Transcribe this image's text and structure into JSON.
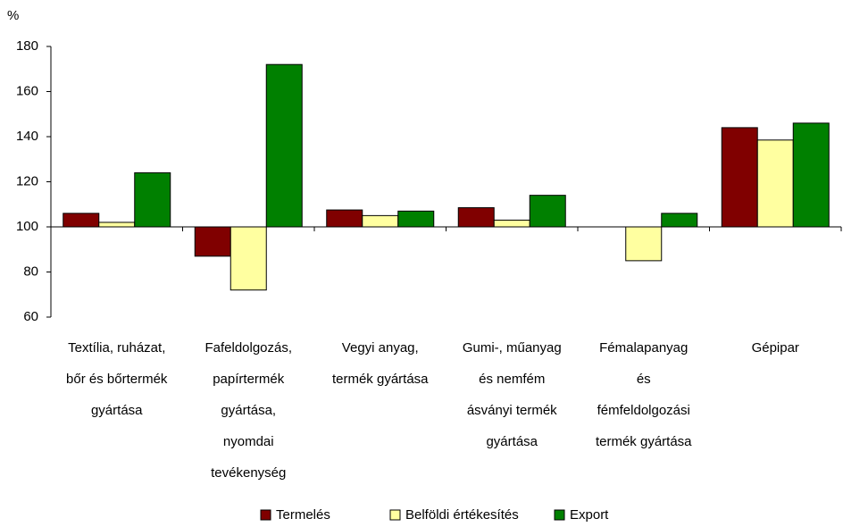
{
  "chart_data": {
    "type": "bar",
    "ylabel": "%",
    "categories": [
      [
        "Textília, ruházat,",
        "bőr és bőrtermék",
        "gyártása"
      ],
      [
        "Fafeldolgozás,",
        "papírtermék",
        "gyártása,",
        "nyomdai",
        "tevékenység"
      ],
      [
        "Vegyi anyag,",
        "termék gyártása"
      ],
      [
        "Gumi-, műanyag",
        "és nemfém",
        "ásványi termék",
        "gyártása"
      ],
      [
        "Fémalapanyag",
        "és",
        "fémfeldolgozási",
        "termék gyártása"
      ],
      [
        "Gépipar"
      ]
    ],
    "series": [
      {
        "name": "Termelés",
        "color": "#800000",
        "values": [
          106,
          87,
          107.5,
          108.5,
          null,
          144
        ]
      },
      {
        "name": "Belföldi értékesítés",
        "color": "#ffffa0",
        "values": [
          102,
          72,
          105,
          103,
          85,
          138.5
        ]
      },
      {
        "name": "Export",
        "color": "#008000",
        "values": [
          124,
          172,
          107,
          114,
          106,
          146
        ]
      }
    ],
    "ylim": [
      60,
      180
    ],
    "yticks": [
      60,
      80,
      100,
      120,
      140,
      160,
      180
    ],
    "xaxis_crosses": 100,
    "grid": false,
    "legend": "bottom"
  }
}
